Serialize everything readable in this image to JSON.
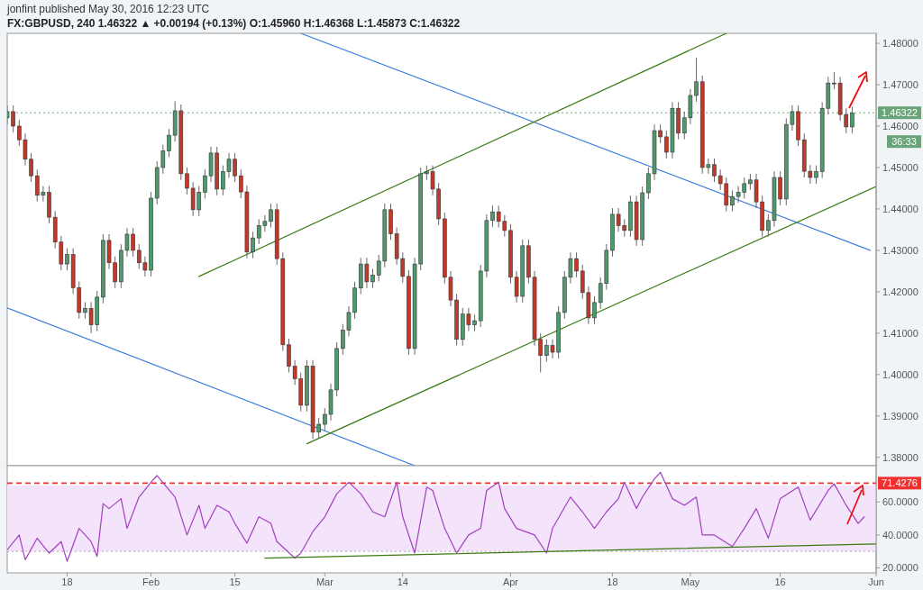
{
  "chart_data": [
    {
      "type": "candlestick",
      "title": "FX:GBPUSD, 240 1.46322 ▲ +0.00194 (+0.13%) O:1.45960 H:1.46368 L:1.45873 C:1.46322",
      "subtitle": "jonfint published May 30, 2016 12:23 UTC",
      "xlim": [
        "2016-01-08",
        "2016-06-01"
      ],
      "ylim": [
        1.378,
        1.4824
      ],
      "yticks": [
        {
          "value": 1.38,
          "label": "1.38000"
        },
        {
          "value": 1.39,
          "label": "1.39000"
        },
        {
          "value": 1.4,
          "label": "1.40000"
        },
        {
          "value": 1.41,
          "label": "1.41000"
        },
        {
          "value": 1.42,
          "label": "1.42000"
        },
        {
          "value": 1.43,
          "label": "1.43000"
        },
        {
          "value": 1.44,
          "label": "1.44000"
        },
        {
          "value": 1.45,
          "label": "1.45000"
        },
        {
          "value": 1.46,
          "label": "1.46000"
        },
        {
          "value": 1.47,
          "label": "1.47000"
        },
        {
          "value": 1.48,
          "label": "1.48000"
        }
      ],
      "tick_labels": "y",
      "x": [
        "2016-01-08",
        "2016-01-09",
        "2016-01-10",
        "2016-01-11",
        "2016-01-12",
        "2016-01-13",
        "2016-01-14",
        "2016-01-15",
        "2016-01-16",
        "2016-01-17",
        "2016-01-18",
        "2016-01-19",
        "2016-01-20",
        "2016-01-21",
        "2016-01-22",
        "2016-01-23",
        "2016-01-24",
        "2016-01-25",
        "2016-01-26",
        "2016-01-27",
        "2016-01-28",
        "2016-01-29",
        "2016-01-30",
        "2016-01-31",
        "2016-02-01",
        "2016-02-02",
        "2016-02-03",
        "2016-02-04",
        "2016-02-05",
        "2016-02-06",
        "2016-02-07",
        "2016-02-08",
        "2016-02-09",
        "2016-02-10",
        "2016-02-11",
        "2016-02-12",
        "2016-02-13",
        "2016-02-14",
        "2016-02-15",
        "2016-02-16",
        "2016-02-17",
        "2016-02-18",
        "2016-02-19",
        "2016-02-20",
        "2016-02-21",
        "2016-02-22",
        "2016-02-23",
        "2016-02-24",
        "2016-02-25",
        "2016-02-26",
        "2016-02-27",
        "2016-02-28",
        "2016-02-29",
        "2016-03-01",
        "2016-03-02",
        "2016-03-03",
        "2016-03-04",
        "2016-03-05",
        "2016-03-06",
        "2016-03-07",
        "2016-03-08",
        "2016-03-09",
        "2016-03-10",
        "2016-03-11",
        "2016-03-12",
        "2016-03-13",
        "2016-03-14",
        "2016-03-15",
        "2016-03-16",
        "2016-03-17",
        "2016-03-18",
        "2016-03-19",
        "2016-03-20",
        "2016-03-21",
        "2016-03-22",
        "2016-03-23",
        "2016-03-24",
        "2016-03-25",
        "2016-03-26",
        "2016-03-27",
        "2016-03-28",
        "2016-03-29",
        "2016-03-30",
        "2016-03-31",
        "2016-04-01",
        "2016-04-02",
        "2016-04-03",
        "2016-04-04",
        "2016-04-05",
        "2016-04-06",
        "2016-04-07",
        "2016-04-08",
        "2016-04-09",
        "2016-04-10",
        "2016-04-11",
        "2016-04-12",
        "2016-04-13",
        "2016-04-14",
        "2016-04-15",
        "2016-04-16",
        "2016-04-17",
        "2016-04-18",
        "2016-04-19",
        "2016-04-20",
        "2016-04-21",
        "2016-04-22",
        "2016-04-23",
        "2016-04-24",
        "2016-04-25",
        "2016-04-26",
        "2016-04-27",
        "2016-04-28",
        "2016-04-29",
        "2016-04-30",
        "2016-05-01",
        "2016-05-02",
        "2016-05-03",
        "2016-05-04",
        "2016-05-05",
        "2016-05-06",
        "2016-05-07",
        "2016-05-08",
        "2016-05-09",
        "2016-05-10",
        "2016-05-11",
        "2016-05-12",
        "2016-05-13",
        "2016-05-14",
        "2016-05-15",
        "2016-05-16",
        "2016-05-17",
        "2016-05-18",
        "2016-05-19",
        "2016-05-20",
        "2016-05-21",
        "2016-05-22",
        "2016-05-23",
        "2016-05-24",
        "2016-05-25",
        "2016-05-26",
        "2016-05-27",
        "2016-05-28"
      ],
      "ohlc": [
        [
          1.462,
          1.465,
          1.4605,
          1.4635
        ],
        [
          1.4635,
          1.465,
          1.4585,
          1.46
        ],
        [
          1.46,
          1.4615,
          1.4552,
          1.4567
        ],
        [
          1.4567,
          1.4582,
          1.4505,
          1.452
        ],
        [
          1.452,
          1.4535,
          1.4465,
          1.448
        ],
        [
          1.448,
          1.4495,
          1.4418,
          1.4433
        ],
        [
          1.4433,
          1.4455,
          1.4418,
          1.444
        ],
        [
          1.444,
          1.4455,
          1.4365,
          1.438
        ],
        [
          1.438,
          1.4395,
          1.4305,
          1.432
        ],
        [
          1.432,
          1.4335,
          1.4252,
          1.4267
        ],
        [
          1.4267,
          1.4305,
          1.4252,
          1.429
        ],
        [
          1.429,
          1.4305,
          1.4195,
          1.421
        ],
        [
          1.421,
          1.4225,
          1.4135,
          1.415
        ],
        [
          1.415,
          1.4175,
          1.4135,
          1.416
        ],
        [
          1.416,
          1.4175,
          1.41,
          1.412
        ],
        [
          1.412,
          1.4202,
          1.4105,
          1.4187
        ],
        [
          1.4187,
          1.4339,
          1.4172,
          1.4324
        ],
        [
          1.4324,
          1.4339,
          1.4255,
          1.427
        ],
        [
          1.427,
          1.4285,
          1.4209,
          1.4224
        ],
        [
          1.4224,
          1.4315,
          1.4209,
          1.43
        ],
        [
          1.43,
          1.4354,
          1.4285,
          1.4339
        ],
        [
          1.4339,
          1.4354,
          1.4285,
          1.43
        ],
        [
          1.43,
          1.4315,
          1.4255,
          1.427
        ],
        [
          1.427,
          1.4285,
          1.4237,
          1.4252
        ],
        [
          1.4252,
          1.4441,
          1.4237,
          1.4426
        ],
        [
          1.4426,
          1.4515,
          1.4411,
          1.45
        ],
        [
          1.45,
          1.4555,
          1.4485,
          1.454
        ],
        [
          1.454,
          1.4593,
          1.4525,
          1.4578
        ],
        [
          1.4578,
          1.466,
          1.4563,
          1.4637
        ],
        [
          1.4637,
          1.4652,
          1.447,
          1.4485
        ],
        [
          1.4485,
          1.45,
          1.4435,
          1.445
        ],
        [
          1.445,
          1.4465,
          1.4383,
          1.4398
        ],
        [
          1.4398,
          1.4455,
          1.4383,
          1.444
        ],
        [
          1.444,
          1.4495,
          1.4425,
          1.448
        ],
        [
          1.448,
          1.455,
          1.4465,
          1.4535
        ],
        [
          1.4535,
          1.455,
          1.4433,
          1.4448
        ],
        [
          1.4448,
          1.4505,
          1.4433,
          1.449
        ],
        [
          1.449,
          1.4535,
          1.4475,
          1.452
        ],
        [
          1.452,
          1.4535,
          1.4465,
          1.448
        ],
        [
          1.448,
          1.4495,
          1.4426,
          1.4441
        ],
        [
          1.4441,
          1.4456,
          1.4281,
          1.4296
        ],
        [
          1.4296,
          1.4345,
          1.4281,
          1.433
        ],
        [
          1.433,
          1.4375,
          1.4315,
          1.436
        ],
        [
          1.436,
          1.4385,
          1.4345,
          1.437
        ],
        [
          1.437,
          1.4413,
          1.4355,
          1.4398
        ],
        [
          1.4398,
          1.4413,
          1.4265,
          1.428
        ],
        [
          1.428,
          1.4295,
          1.4057,
          1.4072
        ],
        [
          1.4072,
          1.4087,
          1.4005,
          1.402
        ],
        [
          1.402,
          1.4035,
          1.3975,
          1.399
        ],
        [
          1.399,
          1.4005,
          1.3911,
          1.3926
        ],
        [
          1.3926,
          1.4035,
          1.3911,
          1.402
        ],
        [
          1.402,
          1.4035,
          1.3845,
          1.3861
        ],
        [
          1.3861,
          1.3895,
          1.3846,
          1.388
        ],
        [
          1.388,
          1.3919,
          1.3865,
          1.3904
        ],
        [
          1.3904,
          1.3978,
          1.3889,
          1.3963
        ],
        [
          1.3963,
          1.4078,
          1.3948,
          1.4063
        ],
        [
          1.4063,
          1.4122,
          1.4048,
          1.4107
        ],
        [
          1.4107,
          1.4165,
          1.4092,
          1.415
        ],
        [
          1.415,
          1.4224,
          1.4135,
          1.4209
        ],
        [
          1.4209,
          1.4282,
          1.4194,
          1.4267
        ],
        [
          1.4267,
          1.4282,
          1.4209,
          1.4224
        ],
        [
          1.4224,
          1.4255,
          1.4209,
          1.424
        ],
        [
          1.424,
          1.4289,
          1.4225,
          1.4274
        ],
        [
          1.4274,
          1.4413,
          1.4259,
          1.4398
        ],
        [
          1.4398,
          1.4413,
          1.4325,
          1.434
        ],
        [
          1.434,
          1.4355,
          1.4265,
          1.428
        ],
        [
          1.428,
          1.4295,
          1.4222,
          1.4237
        ],
        [
          1.4237,
          1.4252,
          1.4048,
          1.4063
        ],
        [
          1.4063,
          1.4282,
          1.4048,
          1.4267
        ],
        [
          1.4267,
          1.45,
          1.4252,
          1.4485
        ],
        [
          1.4485,
          1.4505,
          1.447,
          1.449
        ],
        [
          1.449,
          1.4505,
          1.4433,
          1.4448
        ],
        [
          1.4448,
          1.4463,
          1.4361,
          1.4376
        ],
        [
          1.4376,
          1.4391,
          1.422,
          1.4235
        ],
        [
          1.4235,
          1.425,
          1.4165,
          1.418
        ],
        [
          1.418,
          1.4195,
          1.407,
          1.4085
        ],
        [
          1.4085,
          1.4161,
          1.407,
          1.4146
        ],
        [
          1.4146,
          1.4161,
          1.4105,
          1.412
        ],
        [
          1.412,
          1.4145,
          1.4105,
          1.413
        ],
        [
          1.413,
          1.4265,
          1.4115,
          1.425
        ],
        [
          1.425,
          1.4387,
          1.4235,
          1.4372
        ],
        [
          1.4372,
          1.4408,
          1.4357,
          1.4393
        ],
        [
          1.4393,
          1.4408,
          1.4355,
          1.437
        ],
        [
          1.437,
          1.4385,
          1.4333,
          1.4348
        ],
        [
          1.4348,
          1.4363,
          1.422,
          1.4235
        ],
        [
          1.4235,
          1.425,
          1.4174,
          1.4189
        ],
        [
          1.4189,
          1.4326,
          1.4174,
          1.4311
        ],
        [
          1.4311,
          1.4326,
          1.422,
          1.4235
        ],
        [
          1.4235,
          1.425,
          1.407,
          1.4085
        ],
        [
          1.4085,
          1.41,
          1.4005,
          1.4046
        ],
        [
          1.4046,
          1.4085,
          1.4031,
          1.407
        ],
        [
          1.407,
          1.4085,
          1.4039,
          1.4054
        ],
        [
          1.4054,
          1.4165,
          1.4039,
          1.415
        ],
        [
          1.415,
          1.425,
          1.4135,
          1.4235
        ],
        [
          1.4235,
          1.4295,
          1.422,
          1.428
        ],
        [
          1.428,
          1.4295,
          1.4235,
          1.425
        ],
        [
          1.425,
          1.4265,
          1.4183,
          1.4198
        ],
        [
          1.4198,
          1.4213,
          1.4122,
          1.4137
        ],
        [
          1.4137,
          1.4189,
          1.4122,
          1.4174
        ],
        [
          1.4174,
          1.4235,
          1.4159,
          1.422
        ],
        [
          1.422,
          1.4315,
          1.4205,
          1.43
        ],
        [
          1.43,
          1.4402,
          1.4285,
          1.4387
        ],
        [
          1.4387,
          1.4402,
          1.4345,
          1.436
        ],
        [
          1.436,
          1.4375,
          1.4333,
          1.4348
        ],
        [
          1.4348,
          1.4432,
          1.4333,
          1.4417
        ],
        [
          1.4417,
          1.4432,
          1.4311,
          1.4326
        ],
        [
          1.4326,
          1.4454,
          1.4311,
          1.4439
        ],
        [
          1.4439,
          1.45,
          1.4424,
          1.4485
        ],
        [
          1.4485,
          1.4604,
          1.447,
          1.4589
        ],
        [
          1.4589,
          1.4604,
          1.4559,
          1.4574
        ],
        [
          1.4574,
          1.4589,
          1.4522,
          1.4537
        ],
        [
          1.4537,
          1.4658,
          1.4522,
          1.4643
        ],
        [
          1.4643,
          1.4658,
          1.4568,
          1.4583
        ],
        [
          1.4583,
          1.4635,
          1.4568,
          1.462
        ],
        [
          1.462,
          1.4689,
          1.4605,
          1.4674
        ],
        [
          1.4674,
          1.4765,
          1.4659,
          1.4707
        ],
        [
          1.4707,
          1.4722,
          1.4485,
          1.45
        ],
        [
          1.45,
          1.4522,
          1.4485,
          1.4507
        ],
        [
          1.4507,
          1.4522,
          1.4465,
          1.448
        ],
        [
          1.448,
          1.4495,
          1.4446,
          1.4461
        ],
        [
          1.4461,
          1.4476,
          1.4394,
          1.4409
        ],
        [
          1.4409,
          1.4445,
          1.4394,
          1.443
        ],
        [
          1.443,
          1.4455,
          1.4415,
          1.444
        ],
        [
          1.444,
          1.4476,
          1.4425,
          1.4461
        ],
        [
          1.4461,
          1.4485,
          1.4446,
          1.447
        ],
        [
          1.447,
          1.4485,
          1.4402,
          1.4417
        ],
        [
          1.4417,
          1.4432,
          1.4333,
          1.4348
        ],
        [
          1.4348,
          1.4387,
          1.4333,
          1.4372
        ],
        [
          1.4372,
          1.4491,
          1.4357,
          1.4476
        ],
        [
          1.4476,
          1.4491,
          1.4409,
          1.4424
        ],
        [
          1.4424,
          1.4619,
          1.4409,
          1.4604
        ],
        [
          1.4604,
          1.465,
          1.4589,
          1.4635
        ],
        [
          1.4635,
          1.465,
          1.4552,
          1.4567
        ],
        [
          1.4567,
          1.4582,
          1.4476,
          1.4491
        ],
        [
          1.4491,
          1.4506,
          1.4461,
          1.4476
        ],
        [
          1.4476,
          1.4505,
          1.4461,
          1.449
        ],
        [
          1.449,
          1.4658,
          1.4475,
          1.4643
        ],
        [
          1.4643,
          1.4719,
          1.4628,
          1.4704
        ],
        [
          1.4704,
          1.473,
          1.4689,
          1.4704
        ],
        [
          1.4704,
          1.4719,
          1.4613,
          1.4628
        ],
        [
          1.4628,
          1.4643,
          1.4583,
          1.4598
        ],
        [
          1.4598,
          1.4647,
          1.4583,
          1.4632
        ]
      ],
      "series": [
        {
          "type": "line",
          "color": "#3d7fdc",
          "x": [
            "2016-02-26",
            "2016-05-31"
          ],
          "values": [
            1.4824,
            1.43
          ]
        },
        {
          "type": "line",
          "color": "#3d7fdc",
          "x": [
            "2016-01-08",
            "2016-03-16"
          ],
          "values": [
            1.4161,
            1.378
          ]
        },
        {
          "type": "line",
          "color": "#3a7a10",
          "x": [
            "2016-02-09",
            "2016-05-07"
          ],
          "values": [
            1.4237,
            1.4824
          ]
        },
        {
          "type": "line",
          "color": "#3a7a10",
          "x": [
            "2016-02-27",
            "2016-06-01"
          ],
          "values": [
            1.3833,
            1.4454
          ]
        }
      ],
      "ref_lines": [
        {
          "axis": "y",
          "value": 1.46322,
          "label": "1.46322",
          "color": "#6aa57a",
          "line_style": "dotted"
        }
      ],
      "annotations": [
        "36:33"
      ]
    },
    {
      "type": "line",
      "xlim": [
        "2016-01-08",
        "2016-06-01"
      ],
      "ylim": [
        17,
        82
      ],
      "xticks": [
        {
          "value": "2016-01-18",
          "label": "18"
        },
        {
          "value": "2016-02-01",
          "label": "Feb"
        },
        {
          "value": "2016-02-15",
          "label": "15"
        },
        {
          "value": "2016-03-01",
          "label": "Mar"
        },
        {
          "value": "2016-03-14",
          "label": "14"
        },
        {
          "value": "2016-04-01",
          "label": "Apr"
        },
        {
          "value": "2016-04-18",
          "label": "18"
        },
        {
          "value": "2016-05-01",
          "label": "May"
        },
        {
          "value": "2016-05-16",
          "label": "16"
        },
        {
          "value": "2016-06-01",
          "label": "Jun"
        }
      ],
      "yticks": [
        {
          "value": 20,
          "label": "20.0000"
        },
        {
          "value": 40,
          "label": "40.0000"
        },
        {
          "value": 60,
          "label": "60.0000"
        }
      ],
      "x": [
        "2016-01-08",
        "2016-01-10",
        "2016-01-11",
        "2016-01-13",
        "2016-01-15",
        "2016-01-17",
        "2016-01-18",
        "2016-01-20",
        "2016-01-22",
        "2016-01-23",
        "2016-01-24",
        "2016-01-25",
        "2016-01-27",
        "2016-01-28",
        "2016-01-30",
        "2016-02-01",
        "2016-02-02",
        "2016-02-05",
        "2016-02-07",
        "2016-02-09",
        "2016-02-10",
        "2016-02-12",
        "2016-02-14",
        "2016-02-15",
        "2016-02-17",
        "2016-02-19",
        "2016-02-21",
        "2016-02-22",
        "2016-02-25",
        "2016-02-26",
        "2016-02-28",
        "2016-03-01",
        "2016-03-03",
        "2016-03-05",
        "2016-03-07",
        "2016-03-09",
        "2016-03-11",
        "2016-03-13",
        "2016-03-14",
        "2016-03-16",
        "2016-03-18",
        "2016-03-19",
        "2016-03-21",
        "2016-03-23",
        "2016-03-25",
        "2016-03-27",
        "2016-03-28",
        "2016-03-30",
        "2016-03-31",
        "2016-04-02",
        "2016-04-05",
        "2016-04-07",
        "2016-04-08",
        "2016-04-11",
        "2016-04-13",
        "2016-04-15",
        "2016-04-17",
        "2016-04-19",
        "2016-04-20",
        "2016-04-22",
        "2016-04-23",
        "2016-04-25",
        "2016-04-26",
        "2016-04-28",
        "2016-04-30",
        "2016-05-02",
        "2016-05-03",
        "2016-05-05",
        "2016-05-08",
        "2016-05-10",
        "2016-05-12",
        "2016-05-14",
        "2016-05-16",
        "2016-05-19",
        "2016-05-21",
        "2016-05-24",
        "2016-05-25",
        "2016-05-27",
        "2016-05-29",
        "2016-05-30"
      ],
      "series": [
        {
          "color": "#a33fc0",
          "values": [
            31,
            40,
            25,
            38,
            29,
            36,
            24,
            44,
            36,
            27,
            59,
            56,
            62,
            44,
            63,
            72,
            76,
            63,
            40,
            58,
            44,
            58,
            54,
            47,
            35,
            51,
            47,
            36,
            26,
            29,
            42,
            51,
            65,
            72,
            65,
            54,
            51,
            72,
            51,
            29,
            69,
            67,
            44,
            29,
            40,
            44,
            67,
            72,
            56,
            44,
            40,
            29,
            44,
            63,
            54,
            44,
            54,
            62,
            72,
            56,
            63,
            74,
            78,
            62,
            58,
            63,
            40,
            40,
            33,
            44,
            56,
            38,
            62,
            69,
            49,
            67,
            71,
            58,
            47,
            51
          ]
        },
        {
          "type": "line",
          "color": "#3a7a10",
          "x": [
            "2016-02-20",
            "2016-06-01"
          ],
          "values": [
            25.9,
            34.6
          ]
        }
      ],
      "bands": [
        {
          "axis": "y",
          "from": 30,
          "to": 70,
          "color": "#f4e4fb"
        }
      ],
      "ref_lines": [
        {
          "axis": "y",
          "value": 30,
          "color": "#b0b0b0",
          "line_style": "dotted"
        },
        {
          "axis": "y",
          "value": 71.4276,
          "label": "71.4276",
          "color": "#f23030",
          "line_style": "dashed"
        }
      ]
    }
  ]
}
